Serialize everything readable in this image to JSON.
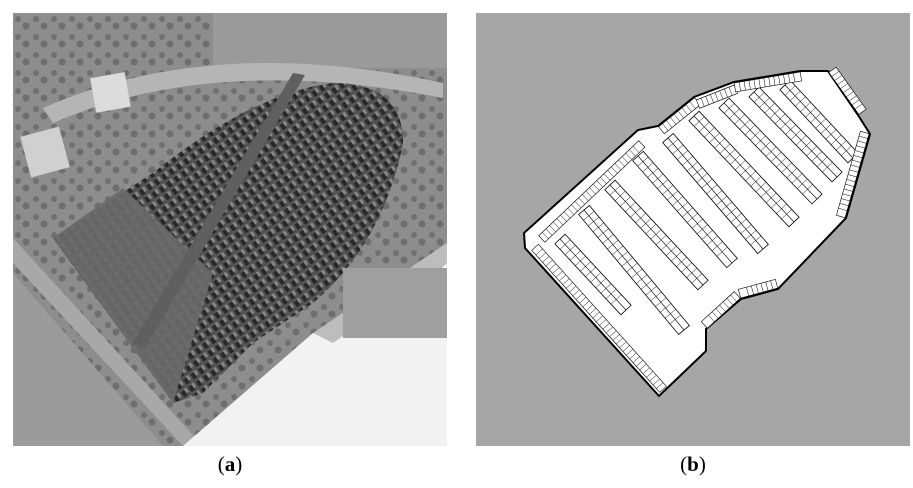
{
  "figure": {
    "panels": [
      {
        "id": "a",
        "label": "a",
        "caption_open": "(",
        "caption_close": ")",
        "content": "aerial-photo-parking-lot"
      },
      {
        "id": "b",
        "label": "b",
        "caption_open": "(",
        "caption_close": ")",
        "content": "parking-layout-schematic"
      }
    ]
  },
  "colors": {
    "background_b": "#a6a6a6",
    "lot_fill": "#ffffff",
    "outline": "#000000",
    "aerial_ground": "#8c8c8c",
    "aerial_lot": "#4a4a4a",
    "building_roof": "#f2f2f2"
  }
}
